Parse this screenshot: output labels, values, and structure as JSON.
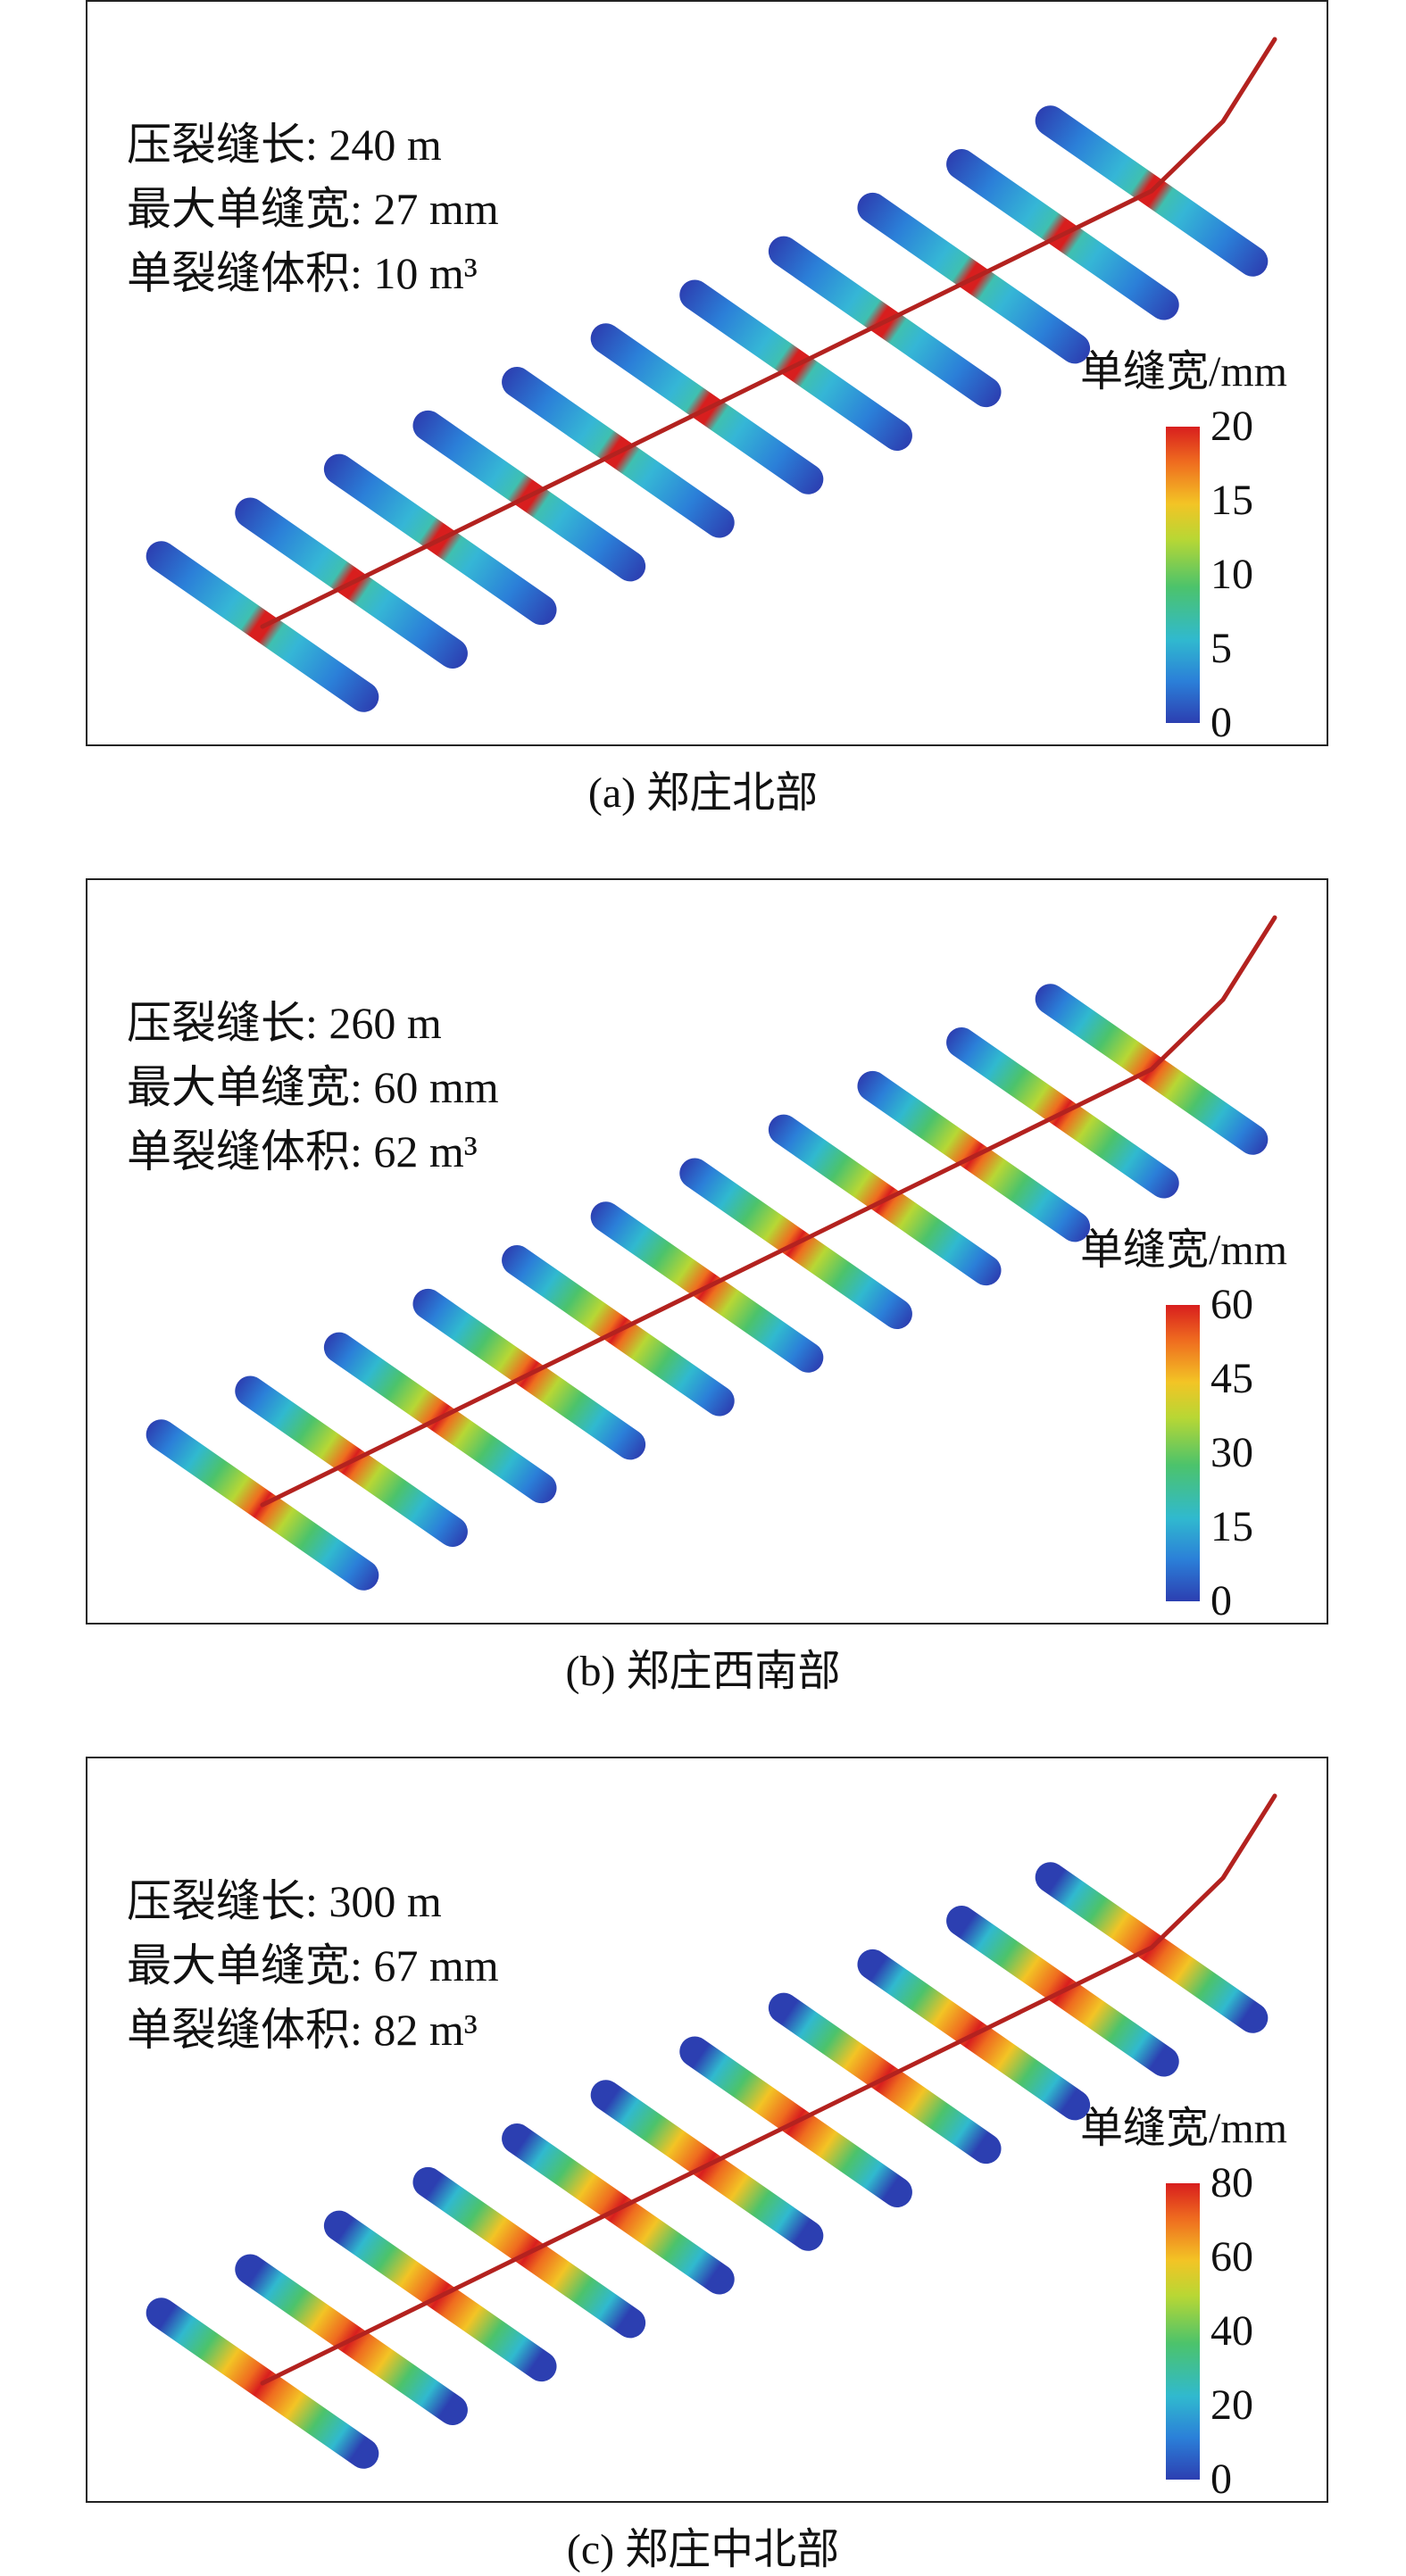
{
  "panels": [
    {
      "caption": "(a) 郑庄北部",
      "info": [
        "压裂缝长: 240 m",
        "最大单缝宽: 27 mm",
        "单裂缝体积: 10 m³"
      ],
      "legend_title": "单缝宽/mm",
      "ticks": [
        "20",
        "15",
        "10",
        "5",
        "0"
      ],
      "fractures": 11,
      "max_width_mm": 27,
      "scale_max_mm": 20
    },
    {
      "caption": "(b) 郑庄西南部",
      "info": [
        "压裂缝长: 260 m",
        "最大单缝宽: 60 mm",
        "单裂缝体积: 62 m³"
      ],
      "legend_title": "单缝宽/mm",
      "ticks": [
        "60",
        "45",
        "30",
        "15",
        "0"
      ],
      "fractures": 11,
      "max_width_mm": 60,
      "scale_max_mm": 60
    },
    {
      "caption": "(c) 郑庄中北部",
      "info": [
        "压裂缝长: 300 m",
        "最大单缝宽: 67 mm",
        "单裂缝体积: 82 m³"
      ],
      "legend_title": "单缝宽/mm",
      "ticks": [
        "80",
        "60",
        "40",
        "20",
        "0"
      ],
      "fractures": 11,
      "max_width_mm": 67,
      "scale_max_mm": 80
    }
  ],
  "colors": {
    "wellbore": "#b3221f",
    "low": "#2c3fb1",
    "high": "#d81e1e"
  }
}
